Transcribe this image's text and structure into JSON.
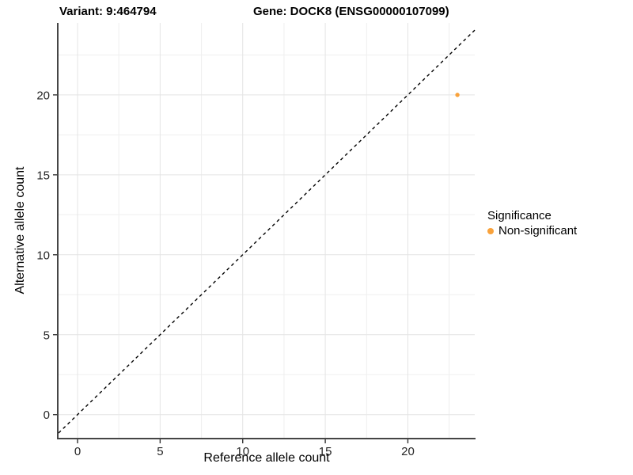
{
  "chart_data": {
    "type": "scatter",
    "title_left": "Variant: 9:464794",
    "title_right": "Gene: DOCK8 (ENSG00000107099)",
    "xlabel": "Reference allele count",
    "ylabel": "Alternative allele count",
    "x_ticks": [
      0,
      5,
      10,
      15,
      20
    ],
    "y_ticks": [
      0,
      5,
      10,
      15,
      20
    ],
    "xlim": [
      -1.15,
      24.05
    ],
    "ylim": [
      -1.45,
      24.5
    ],
    "minor_step": 2.5,
    "grid": true,
    "points": [
      {
        "x": 23,
        "y": 20,
        "series": "Non-significant"
      }
    ],
    "identity_line": {
      "equation": "y = x",
      "style": "dashed",
      "color": "#000000"
    },
    "legend": {
      "title": "Significance",
      "position": "right",
      "items": [
        {
          "label": "Non-significant",
          "color": "#F9A23B"
        }
      ]
    },
    "colors": {
      "point_orange": "#F9A23B",
      "grid_major": "#e4e4e4",
      "grid_minor": "#efefef",
      "axis_line": "#454545",
      "tick_text": "#262626"
    }
  }
}
